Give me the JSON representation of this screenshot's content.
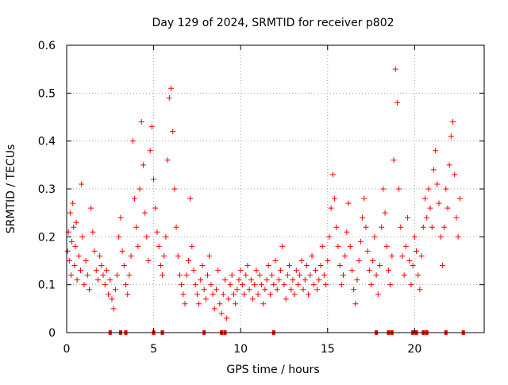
{
  "chart_data": {
    "type": "scatter",
    "title": "Day 129 of 2024, SRMTID for receiver p802",
    "xlabel": "GPS time / hours",
    "ylabel": "SRMTID / TECUs",
    "xlim": [
      0,
      24
    ],
    "ylim": [
      0,
      0.6
    ],
    "x_ticks": [
      0,
      5,
      10,
      15,
      20
    ],
    "x_tick_labels": [
      "0",
      "5",
      "10",
      "15",
      "20"
    ],
    "y_ticks": [
      0,
      0.1,
      0.2,
      0.3,
      0.4,
      0.5,
      0.6
    ],
    "y_tick_labels": [
      "0",
      "0.1",
      "0.2",
      "0.3",
      "0.4",
      "0.5",
      "0.6"
    ],
    "grid": true,
    "marker": "+",
    "color": "#ff0000",
    "series": [
      {
        "name": "SRMTID",
        "points": [
          [
            0.05,
            0.17
          ],
          [
            0.1,
            0.21
          ],
          [
            0.15,
            0.15
          ],
          [
            0.2,
            0.25
          ],
          [
            0.25,
            0.12
          ],
          [
            0.3,
            0.19
          ],
          [
            0.35,
            0.27
          ],
          [
            0.4,
            0.22
          ],
          [
            0.45,
            0.14
          ],
          [
            0.5,
            0.18
          ],
          [
            0.55,
            0.23
          ],
          [
            0.6,
            0.11
          ],
          [
            0.7,
            0.16
          ],
          [
            0.8,
            0.13
          ],
          [
            0.85,
            0.31
          ],
          [
            0.9,
            0.2
          ],
          [
            1.0,
            0.1
          ],
          [
            1.1,
            0.15
          ],
          [
            1.2,
            0.12
          ],
          [
            1.3,
            0.09
          ],
          [
            1.4,
            0.26
          ],
          [
            1.5,
            0.21
          ],
          [
            1.6,
            0.17
          ],
          [
            1.7,
            0.13
          ],
          [
            1.8,
            0.11
          ],
          [
            1.9,
            0.16
          ],
          [
            2.0,
            0.14
          ],
          [
            2.1,
            0.12
          ],
          [
            2.2,
            0.1
          ],
          [
            2.3,
            0.13
          ],
          [
            2.4,
            0.08
          ],
          [
            2.5,
            0.11
          ],
          [
            2.6,
            0.07
          ],
          [
            2.7,
            0.05
          ],
          [
            2.8,
            0.09
          ],
          [
            2.9,
            0.12
          ],
          [
            3.0,
            0.2
          ],
          [
            3.1,
            0.24
          ],
          [
            3.2,
            0.17
          ],
          [
            3.3,
            0.14
          ],
          [
            3.4,
            0.1
          ],
          [
            3.5,
            0.08
          ],
          [
            3.6,
            0.12
          ],
          [
            3.7,
            0.16
          ],
          [
            3.8,
            0.4
          ],
          [
            3.9,
            0.28
          ],
          [
            4.0,
            0.22
          ],
          [
            4.1,
            0.18
          ],
          [
            4.2,
            0.3
          ],
          [
            4.3,
            0.44
          ],
          [
            4.4,
            0.35
          ],
          [
            4.5,
            0.25
          ],
          [
            4.6,
            0.2
          ],
          [
            4.7,
            0.15
          ],
          [
            4.8,
            0.38
          ],
          [
            4.9,
            0.43
          ],
          [
            5.0,
            0.32
          ],
          [
            5.1,
            0.26
          ],
          [
            5.2,
            0.21
          ],
          [
            5.3,
            0.18
          ],
          [
            5.4,
            0.14
          ],
          [
            5.5,
            0.12
          ],
          [
            5.6,
            0.16
          ],
          [
            5.7,
            0.2
          ],
          [
            5.8,
            0.36
          ],
          [
            5.9,
            0.49
          ],
          [
            6.0,
            0.51
          ],
          [
            6.1,
            0.42
          ],
          [
            6.2,
            0.3
          ],
          [
            6.3,
            0.22
          ],
          [
            6.4,
            0.16
          ],
          [
            6.5,
            0.12
          ],
          [
            6.6,
            0.1
          ],
          [
            6.7,
            0.08
          ],
          [
            6.8,
            0.06
          ],
          [
            6.9,
            0.12
          ],
          [
            7.0,
            0.15
          ],
          [
            7.1,
            0.28
          ],
          [
            7.2,
            0.18
          ],
          [
            7.3,
            0.13
          ],
          [
            7.4,
            0.1
          ],
          [
            7.5,
            0.08
          ],
          [
            7.6,
            0.06
          ],
          [
            7.7,
            0.11
          ],
          [
            7.8,
            0.14
          ],
          [
            7.9,
            0.09
          ],
          [
            8.0,
            0.07
          ],
          [
            8.1,
            0.12
          ],
          [
            8.2,
            0.16
          ],
          [
            8.3,
            0.1
          ],
          [
            8.4,
            0.08
          ],
          [
            8.5,
            0.05
          ],
          [
            8.6,
            0.09
          ],
          [
            8.7,
            0.13
          ],
          [
            8.8,
            0.06
          ],
          [
            8.9,
            0.04
          ],
          [
            9.0,
            0.08
          ],
          [
            9.1,
            0.11
          ],
          [
            9.2,
            0.03
          ],
          [
            9.3,
            0.07
          ],
          [
            9.4,
            0.1
          ],
          [
            9.5,
            0.12
          ],
          [
            9.6,
            0.08
          ],
          [
            9.7,
            0.06
          ],
          [
            9.8,
            0.09
          ],
          [
            9.9,
            0.11
          ],
          [
            10.0,
            0.13
          ],
          [
            10.1,
            0.1
          ],
          [
            10.2,
            0.08
          ],
          [
            10.3,
            0.12
          ],
          [
            10.4,
            0.14
          ],
          [
            10.5,
            0.09
          ],
          [
            10.6,
            0.11
          ],
          [
            10.7,
            0.07
          ],
          [
            10.8,
            0.1
          ],
          [
            10.9,
            0.13
          ],
          [
            11.0,
            0.08
          ],
          [
            11.1,
            0.12
          ],
          [
            11.2,
            0.1
          ],
          [
            11.3,
            0.06
          ],
          [
            11.4,
            0.09
          ],
          [
            11.5,
            0.11
          ],
          [
            11.6,
            0.14
          ],
          [
            11.7,
            0.08
          ],
          [
            11.8,
            0.12
          ],
          [
            11.9,
            0.1
          ],
          [
            12.0,
            0.15
          ],
          [
            12.1,
            0.09
          ],
          [
            12.2,
            0.11
          ],
          [
            12.3,
            0.13
          ],
          [
            12.4,
            0.18
          ],
          [
            12.5,
            0.1
          ],
          [
            12.6,
            0.07
          ],
          [
            12.7,
            0.12
          ],
          [
            12.8,
            0.14
          ],
          [
            12.9,
            0.09
          ],
          [
            13.0,
            0.11
          ],
          [
            13.1,
            0.08
          ],
          [
            13.2,
            0.13
          ],
          [
            13.3,
            0.1
          ],
          [
            13.4,
            0.12
          ],
          [
            13.5,
            0.15
          ],
          [
            13.6,
            0.09
          ],
          [
            13.7,
            0.11
          ],
          [
            13.8,
            0.14
          ],
          [
            13.9,
            0.08
          ],
          [
            14.0,
            0.12
          ],
          [
            14.1,
            0.16
          ],
          [
            14.2,
            0.1
          ],
          [
            14.3,
            0.13
          ],
          [
            14.4,
            0.09
          ],
          [
            14.5,
            0.11
          ],
          [
            14.6,
            0.14
          ],
          [
            14.7,
            0.18
          ],
          [
            14.8,
            0.12
          ],
          [
            14.9,
            0.1
          ],
          [
            15.0,
            0.15
          ],
          [
            15.1,
            0.2
          ],
          [
            15.2,
            0.26
          ],
          [
            15.3,
            0.33
          ],
          [
            15.4,
            0.28
          ],
          [
            15.5,
            0.22
          ],
          [
            15.6,
            0.18
          ],
          [
            15.7,
            0.14
          ],
          [
            15.8,
            0.1
          ],
          [
            15.9,
            0.12
          ],
          [
            16.0,
            0.16
          ],
          [
            16.1,
            0.21
          ],
          [
            16.2,
            0.27
          ],
          [
            16.3,
            0.18
          ],
          [
            16.4,
            0.13
          ],
          [
            16.5,
            0.09
          ],
          [
            16.6,
            0.06
          ],
          [
            16.7,
            0.11
          ],
          [
            16.8,
            0.15
          ],
          [
            16.9,
            0.19
          ],
          [
            17.0,
            0.24
          ],
          [
            17.1,
            0.28
          ],
          [
            17.2,
            0.22
          ],
          [
            17.3,
            0.17
          ],
          [
            17.4,
            0.13
          ],
          [
            17.5,
            0.1
          ],
          [
            17.6,
            0.15
          ],
          [
            17.7,
            0.2
          ],
          [
            17.8,
            0.12
          ],
          [
            17.9,
            0.08
          ],
          [
            18.0,
            0.14
          ],
          [
            18.1,
            0.22
          ],
          [
            18.2,
            0.3
          ],
          [
            18.3,
            0.25
          ],
          [
            18.4,
            0.18
          ],
          [
            18.5,
            0.13
          ],
          [
            18.6,
            0.1
          ],
          [
            18.7,
            0.16
          ],
          [
            18.8,
            0.36
          ],
          [
            18.9,
            0.55
          ],
          [
            19.0,
            0.48
          ],
          [
            19.1,
            0.3
          ],
          [
            19.2,
            0.22
          ],
          [
            19.3,
            0.16
          ],
          [
            19.4,
            0.12
          ],
          [
            19.5,
            0.18
          ],
          [
            19.6,
            0.24
          ],
          [
            19.7,
            0.15
          ],
          [
            19.8,
            0.1
          ],
          [
            19.9,
            0.14
          ],
          [
            20.0,
            0.2
          ],
          [
            20.1,
            0.17
          ],
          [
            20.2,
            0.12
          ],
          [
            20.3,
            0.09
          ],
          [
            20.4,
            0.16
          ],
          [
            20.5,
            0.22
          ],
          [
            20.6,
            0.28
          ],
          [
            20.7,
            0.24
          ],
          [
            20.8,
            0.3
          ],
          [
            20.9,
            0.26
          ],
          [
            21.0,
            0.22
          ],
          [
            21.1,
            0.34
          ],
          [
            21.2,
            0.38
          ],
          [
            21.3,
            0.31
          ],
          [
            21.4,
            0.27
          ],
          [
            21.5,
            0.2
          ],
          [
            21.6,
            0.14
          ],
          [
            21.7,
            0.22
          ],
          [
            21.8,
            0.3
          ],
          [
            21.9,
            0.26
          ],
          [
            22.0,
            0.35
          ],
          [
            22.1,
            0.41
          ],
          [
            22.2,
            0.44
          ],
          [
            22.3,
            0.33
          ],
          [
            22.4,
            0.24
          ],
          [
            22.5,
            0.2
          ],
          [
            22.6,
            0.28
          ]
        ]
      }
    ],
    "marker_strip": {
      "y": 0,
      "x": [
        2.5,
        3.1,
        3.4,
        5.0,
        5.5,
        7.9,
        8.9,
        9.1,
        11.9,
        17.8,
        18.5,
        18.7,
        19.9,
        20.1,
        20.5,
        20.7,
        21.8,
        22.8
      ]
    }
  }
}
